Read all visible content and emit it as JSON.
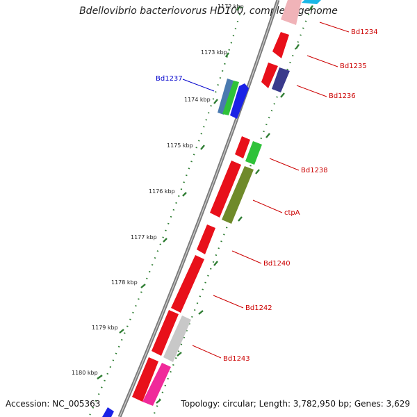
{
  "title": "Bdellovibrio bacteriovorus HD100, complete genome",
  "footer": {
    "accession": "Accession: NC_005363",
    "topology": "Topology: circular; Length: 3,782,950 bp; Genes: 3,629"
  },
  "ticks": [
    "1172 kbp",
    "1173 kbp",
    "1174 kbp",
    "1175 kbp",
    "1176 kbp",
    "1177 kbp",
    "1178 kbp",
    "1179 kbp",
    "1180 kbp"
  ],
  "labels": [
    {
      "name": "Bd1234",
      "color": "#cc0000"
    },
    {
      "name": "Bd1235",
      "color": "#cc0000"
    },
    {
      "name": "Bd1236",
      "color": "#cc0000"
    },
    {
      "name": "Bd1237",
      "color": "#0000cc"
    },
    {
      "name": "Bd1238",
      "color": "#cc0000"
    },
    {
      "name": "ctpA",
      "color": "#cc0000"
    },
    {
      "name": "Bd1240",
      "color": "#cc0000"
    },
    {
      "name": "Bd1242",
      "color": "#cc0000"
    },
    {
      "name": "Bd1243",
      "color": "#cc0000"
    }
  ],
  "colors": {
    "backbone": "#7a7a7a",
    "tick": "#2e7d32",
    "red": "#e8101a",
    "cyan": "#19b7e6",
    "navy": "#3a3a8c",
    "steel": "#4a7ab0",
    "green": "#2fc23a",
    "blue": "#1a22e6",
    "olive": "#6f8a2a",
    "grey": "#c8c8c8",
    "pink": "#f02a9a"
  }
}
